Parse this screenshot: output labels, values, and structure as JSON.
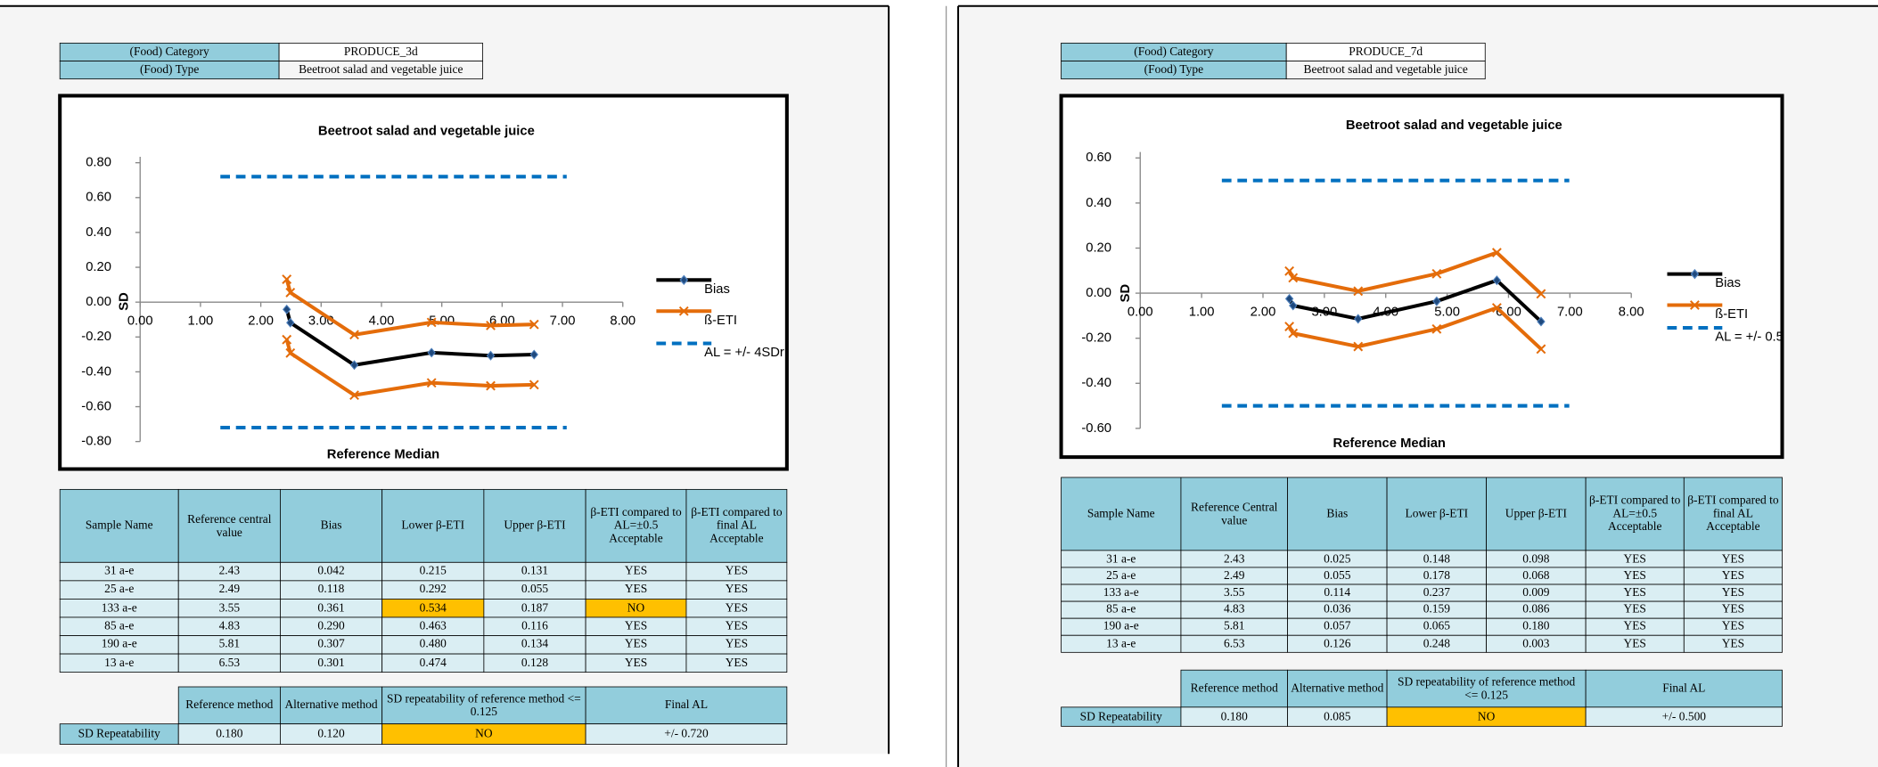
{
  "panels": [
    {
      "category_label": "(Food) Category",
      "category": "PRODUCE_3d",
      "type_label": "(Food) Type",
      "type": "Beetroot salad and vegetable juice",
      "chart": {
        "type": "line",
        "title": "Beetroot salad and vegetable juice",
        "x_label": "Reference Median",
        "y_label": "SD",
        "xlim": [
          0,
          8
        ],
        "xticks": [
          {
            "value": 0,
            "label": "0.00"
          },
          {
            "value": 1,
            "label": "1.00"
          },
          {
            "value": 2,
            "label": "2.00"
          },
          {
            "value": 3,
            "label": "3.00"
          },
          {
            "value": 4,
            "label": "4.00"
          },
          {
            "value": 5,
            "label": "5.00"
          },
          {
            "value": 6,
            "label": "6.00"
          },
          {
            "value": 7,
            "label": "7.00"
          },
          {
            "value": 8,
            "label": "8.00"
          }
        ],
        "ylim": [
          -0.8,
          0.8
        ],
        "yticks": [
          {
            "value": 0.8,
            "label": "0.80"
          },
          {
            "value": 0.6,
            "label": "0.60"
          },
          {
            "value": 0.4,
            "label": "0.40"
          },
          {
            "value": 0.2,
            "label": "0.20"
          },
          {
            "value": 0,
            "label": "0.00"
          },
          {
            "value": -0.2,
            "label": "-0.20"
          },
          {
            "value": -0.4,
            "label": "-0.40"
          },
          {
            "value": -0.6,
            "label": "-0.60"
          },
          {
            "value": -0.8,
            "label": "-0.80"
          }
        ],
        "series": [
          {
            "name": "Bias",
            "color": "#000000",
            "marker": "diamond",
            "lines": [
              {
                "x": [
                  2.43,
                  2.49,
                  3.55,
                  4.83,
                  5.81,
                  6.53
                ],
                "values": [
                  -0.042,
                  -0.118,
                  -0.361,
                  -0.29,
                  -0.307,
                  -0.301
                ]
              }
            ]
          },
          {
            "name": "ß-ETI",
            "color": "#e46c0a",
            "marker": "cross",
            "lines": [
              {
                "x": [
                  2.43,
                  2.49,
                  3.55,
                  4.83,
                  5.81,
                  6.53
                ],
                "values": [
                  0.131,
                  0.055,
                  -0.187,
                  -0.116,
                  -0.134,
                  -0.128
                ]
              },
              {
                "x": [
                  2.43,
                  2.49,
                  3.55,
                  4.83,
                  5.81,
                  6.53
                ],
                "values": [
                  -0.215,
                  -0.292,
                  -0.534,
                  -0.463,
                  -0.48,
                  -0.474
                ]
              }
            ]
          },
          {
            "name": "AL = +/- 4SDr",
            "color": "#0070c0",
            "marker": "dash",
            "lines": [
              {
                "x": [
                  1.33,
                  7.07
                ],
                "values": [
                  0.72,
                  0.72
                ]
              },
              {
                "x": [
                  1.33,
                  7.07
                ],
                "values": [
                  -0.72,
                  -0.72
                ]
              }
            ]
          }
        ]
      },
      "table": {
        "header": [
          "Sample Name",
          "Reference central value",
          "Bias",
          "Lower β-ETI",
          "Upper β-ETI",
          "β-ETI compared to AL=±0.5 Acceptable",
          "β-ETI compared to final AL Acceptable"
        ],
        "rows": [
          [
            "31 a-e",
            "2.43",
            "0.042",
            "0.215",
            "0.131",
            "YES",
            "YES"
          ],
          [
            "25 a-e",
            "2.49",
            "0.118",
            "0.292",
            "0.055",
            "YES",
            "YES"
          ],
          [
            "133 a-e",
            "3.55",
            "0.361",
            "0.534",
            "0.187",
            "NO",
            "YES"
          ],
          [
            "85 a-e",
            "4.83",
            "0.290",
            "0.463",
            "0.116",
            "YES",
            "YES"
          ],
          [
            "190 a-e",
            "5.81",
            "0.307",
            "0.480",
            "0.134",
            "YES",
            "YES"
          ],
          [
            "13 a-e",
            "6.53",
            "0.301",
            "0.474",
            "0.128",
            "YES",
            "YES"
          ]
        ],
        "highlight_color": "#ffc000",
        "highlighted_cells": [
          [
            2,
            3
          ],
          [
            2,
            5
          ]
        ]
      },
      "sd_table": {
        "header": [
          "Reference method",
          "Alternative method",
          "SD repeatability of reference method <= 0.125",
          "Final AL"
        ],
        "row_label": "SD Repeatability",
        "row": [
          "0.180",
          "0.120",
          "NO",
          "+/- 0.720"
        ],
        "highlighted": [
          2
        ]
      }
    },
    {
      "category_label": "(Food) Category",
      "category": "PRODUCE_7d",
      "type_label": "(Food) Type",
      "type": "Beetroot salad and vegetable juice",
      "chart": {
        "type": "line",
        "title": "Beetroot salad and vegetable juice",
        "x_label": "Reference Median",
        "y_label": "SD",
        "xlim": [
          0,
          8
        ],
        "xticks": [
          {
            "value": 0,
            "label": "0.00"
          },
          {
            "value": 1,
            "label": "1.00"
          },
          {
            "value": 2,
            "label": "2.00"
          },
          {
            "value": 3,
            "label": "3.00"
          },
          {
            "value": 4,
            "label": "4.00"
          },
          {
            "value": 5,
            "label": "5.00"
          },
          {
            "value": 6,
            "label": "6.00"
          },
          {
            "value": 7,
            "label": "7.00"
          },
          {
            "value": 8,
            "label": "8.00"
          }
        ],
        "ylim": [
          -0.6,
          0.6
        ],
        "yticks": [
          {
            "value": 0.6,
            "label": "0.60"
          },
          {
            "value": 0.4,
            "label": "0.40"
          },
          {
            "value": 0.2,
            "label": "0.20"
          },
          {
            "value": 0,
            "label": "0.00"
          },
          {
            "value": -0.2,
            "label": "-0.20"
          },
          {
            "value": -0.4,
            "label": "-0.40"
          },
          {
            "value": -0.6,
            "label": "-0.60"
          }
        ],
        "series": [
          {
            "name": "Bias",
            "color": "#000000",
            "marker": "diamond",
            "lines": [
              {
                "x": [
                  2.43,
                  2.49,
                  3.55,
                  4.83,
                  5.81,
                  6.53
                ],
                "values": [
                  -0.025,
                  -0.055,
                  -0.114,
                  -0.036,
                  0.057,
                  -0.126
                ]
              }
            ]
          },
          {
            "name": "ß-ETI",
            "color": "#e46c0a",
            "marker": "cross",
            "lines": [
              {
                "x": [
                  2.43,
                  2.49,
                  3.55,
                  4.83,
                  5.81,
                  6.53
                ],
                "values": [
                  0.098,
                  0.068,
                  0.009,
                  0.086,
                  0.18,
                  -0.003
                ]
              },
              {
                "x": [
                  2.43,
                  2.49,
                  3.55,
                  4.83,
                  5.81,
                  6.53
                ],
                "values": [
                  -0.148,
                  -0.178,
                  -0.237,
                  -0.159,
                  -0.065,
                  -0.248
                ]
              }
            ]
          },
          {
            "name": "AL = +/- 0.5",
            "color": "#0070c0",
            "marker": "dash",
            "lines": [
              {
                "x": [
                  1.33,
                  6.99
                ],
                "values": [
                  0.5,
                  0.5
                ]
              },
              {
                "x": [
                  1.33,
                  6.99
                ],
                "values": [
                  -0.5,
                  -0.5
                ]
              }
            ]
          }
        ]
      },
      "table": {
        "header": [
          "Sample Name",
          "Reference Central value",
          "Bias",
          "Lower β-ETI",
          "Upper β-ETI",
          "β-ETI compared to AL=±0.5 Acceptable",
          "β-ETI compared to final AL Acceptable"
        ],
        "rows": [
          [
            "31 a-e",
            "2.43",
            "0.025",
            "0.148",
            "0.098",
            "YES",
            "YES"
          ],
          [
            "25 a-e",
            "2.49",
            "0.055",
            "0.178",
            "0.068",
            "YES",
            "YES"
          ],
          [
            "133 a-e",
            "3.55",
            "0.114",
            "0.237",
            "0.009",
            "YES",
            "YES"
          ],
          [
            "85 a-e",
            "4.83",
            "0.036",
            "0.159",
            "0.086",
            "YES",
            "YES"
          ],
          [
            "190 a-e",
            "5.81",
            "0.057",
            "0.065",
            "0.180",
            "YES",
            "YES"
          ],
          [
            "13 a-e",
            "6.53",
            "0.126",
            "0.248",
            "0.003",
            "YES",
            "YES"
          ]
        ],
        "highlight_color": "#ffc000",
        "highlighted_cells": []
      },
      "sd_table": {
        "header": [
          "Reference method",
          "Alternative method",
          "SD repeatability of reference method <= 0.125",
          "Final AL"
        ],
        "row_label": "SD Repeatability",
        "row": [
          "0.180",
          "0.085",
          "NO",
          "+/- 0.500"
        ],
        "highlighted": [
          2
        ]
      }
    }
  ]
}
